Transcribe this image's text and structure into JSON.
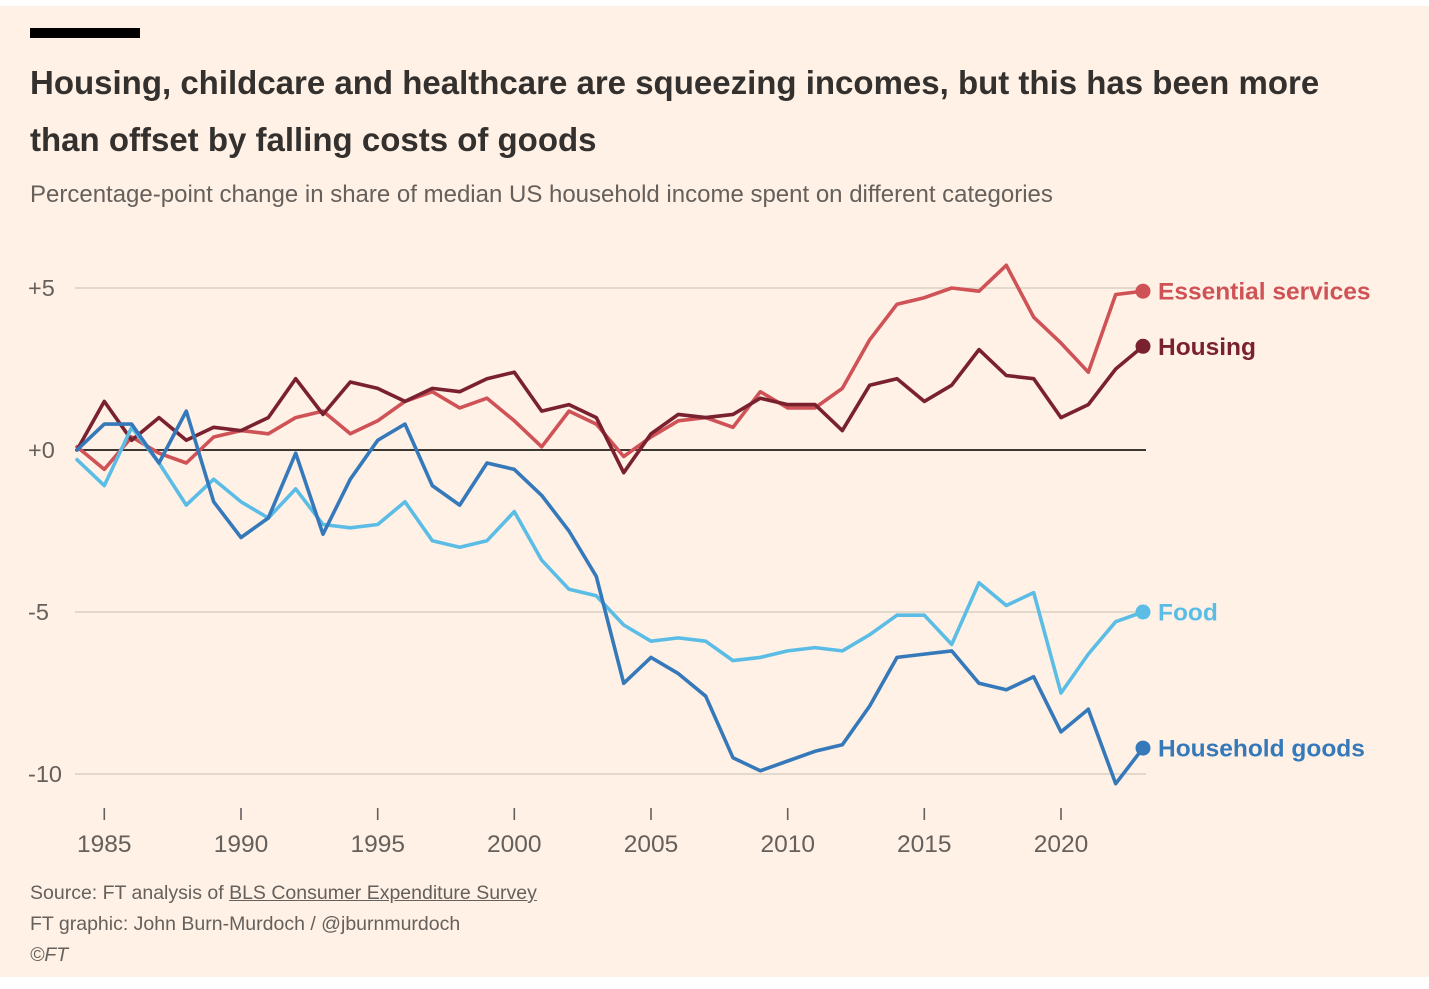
{
  "header": {
    "title": "Housing, childcare and healthcare are squeezing incomes, but this has been more than offset by falling costs of goods",
    "subtitle": "Percentage-point change in share of median US household income spent on different categories"
  },
  "footer": {
    "source_prefix": "Source: FT analysis of ",
    "source_link_text": "BLS Consumer Expenditure Survey",
    "credit": "FT graphic: John Burn-Murdoch / @jburnmurdoch",
    "copyright": "©FT"
  },
  "colors": {
    "background": "#fff1e5",
    "title_text": "#33302e",
    "subtitle_text": "#66605c",
    "axis_text": "#66605c",
    "gridline": "#d2c9bd",
    "zero_line": "#1f1d1b"
  },
  "chart_data": {
    "type": "line",
    "title": "Housing, childcare and healthcare are squeezing incomes, but this has been more than offset by falling costs of goods",
    "subtitle": "Percentage-point change in share of median US household income spent on different categories",
    "xlabel": "",
    "ylabel": "",
    "xlim": [
      1984,
      2023
    ],
    "ylim": [
      -10.8,
      6.2
    ],
    "grid": "horizontal",
    "zero_line": true,
    "legend_position": "line-end-labels",
    "x": [
      1984,
      1985,
      1986,
      1987,
      1988,
      1989,
      1990,
      1991,
      1992,
      1993,
      1994,
      1995,
      1996,
      1997,
      1998,
      1999,
      2000,
      2001,
      2002,
      2003,
      2004,
      2005,
      2006,
      2007,
      2008,
      2009,
      2010,
      2011,
      2012,
      2013,
      2014,
      2015,
      2016,
      2017,
      2018,
      2019,
      2020,
      2021,
      2022,
      2023
    ],
    "xticks": [
      {
        "value": 1985,
        "label": "1985"
      },
      {
        "value": 1990,
        "label": "1990"
      },
      {
        "value": 1995,
        "label": "1995"
      },
      {
        "value": 2000,
        "label": "2000"
      },
      {
        "value": 2005,
        "label": "2005"
      },
      {
        "value": 2010,
        "label": "2010"
      },
      {
        "value": 2015,
        "label": "2015"
      },
      {
        "value": 2020,
        "label": "2020"
      }
    ],
    "yticks": [
      {
        "value": 5,
        "label": "+5"
      },
      {
        "value": 0,
        "label": "+0"
      },
      {
        "value": -5,
        "label": "-5"
      },
      {
        "value": -10,
        "label": "-10"
      }
    ],
    "series": [
      {
        "name": "Essential services",
        "color": "#cf5257",
        "values": [
          0.1,
          -0.6,
          0.4,
          -0.1,
          -0.4,
          0.4,
          0.6,
          0.5,
          1.0,
          1.2,
          0.5,
          0.9,
          1.5,
          1.8,
          1.3,
          1.6,
          0.9,
          0.1,
          1.2,
          0.8,
          -0.2,
          0.4,
          0.9,
          1.0,
          0.7,
          1.8,
          1.3,
          1.3,
          1.9,
          3.4,
          4.5,
          4.7,
          5.0,
          4.9,
          5.7,
          4.1,
          3.3,
          2.4,
          4.8,
          4.9
        ]
      },
      {
        "name": "Housing",
        "color": "#7a2130",
        "values": [
          0.0,
          1.5,
          0.3,
          1.0,
          0.3,
          0.7,
          0.6,
          1.0,
          2.2,
          1.1,
          2.1,
          1.9,
          1.5,
          1.9,
          1.8,
          2.2,
          2.4,
          1.2,
          1.4,
          1.0,
          -0.7,
          0.5,
          1.1,
          1.0,
          1.1,
          1.6,
          1.4,
          1.4,
          0.6,
          2.0,
          2.2,
          1.5,
          2.0,
          3.1,
          2.3,
          2.2,
          1.0,
          1.4,
          2.5,
          3.2
        ]
      },
      {
        "name": "Food",
        "color": "#5bbde6",
        "values": [
          -0.3,
          -1.1,
          0.7,
          -0.4,
          -1.7,
          -0.9,
          -1.6,
          -2.1,
          -1.2,
          -2.3,
          -2.4,
          -2.3,
          -1.6,
          -2.8,
          -3.0,
          -2.8,
          -1.9,
          -3.4,
          -4.3,
          -4.5,
          -5.4,
          -5.9,
          -5.8,
          -5.9,
          -6.5,
          -6.4,
          -6.2,
          -6.1,
          -6.2,
          -5.7,
          -5.1,
          -5.1,
          -6.0,
          -4.1,
          -4.8,
          -4.4,
          -7.5,
          -6.3,
          -5.3,
          -5.0
        ]
      },
      {
        "name": "Household goods",
        "color": "#3579ba",
        "values": [
          0.0,
          0.8,
          0.8,
          -0.4,
          1.2,
          -1.6,
          -2.7,
          -2.1,
          -0.1,
          -2.6,
          -0.9,
          0.3,
          0.8,
          -1.1,
          -1.7,
          -0.4,
          -0.6,
          -1.4,
          -2.5,
          -3.9,
          -7.2,
          -6.4,
          -6.9,
          -7.6,
          -9.5,
          -9.9,
          -9.6,
          -9.3,
          -9.1,
          -7.9,
          -6.4,
          -6.3,
          -6.2,
          -7.2,
          -7.4,
          -7.0,
          -8.7,
          -8.0,
          -10.3,
          -9.2
        ]
      }
    ]
  }
}
